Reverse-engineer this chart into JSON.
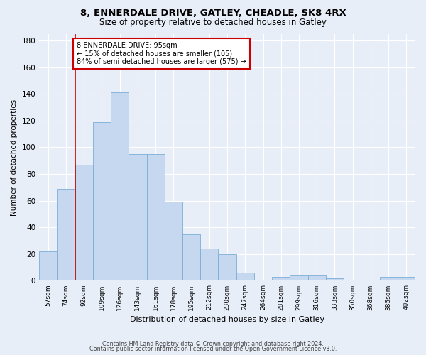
{
  "title1": "8, ENNERDALE DRIVE, GATLEY, CHEADLE, SK8 4RX",
  "title2": "Size of property relative to detached houses in Gatley",
  "xlabel": "Distribution of detached houses by size in Gatley",
  "ylabel": "Number of detached properties",
  "categories": [
    "57sqm",
    "74sqm",
    "92sqm",
    "109sqm",
    "126sqm",
    "143sqm",
    "161sqm",
    "178sqm",
    "195sqm",
    "212sqm",
    "230sqm",
    "247sqm",
    "264sqm",
    "281sqm",
    "299sqm",
    "316sqm",
    "333sqm",
    "350sqm",
    "368sqm",
    "385sqm",
    "402sqm"
  ],
  "values": [
    22,
    69,
    87,
    119,
    141,
    95,
    95,
    59,
    35,
    24,
    20,
    6,
    1,
    3,
    4,
    4,
    2,
    1,
    0,
    3,
    3
  ],
  "bar_color": "#c5d8f0",
  "bar_edge_color": "#7aaed6",
  "background_color": "#e8eef8",
  "grid_color": "#ffffff",
  "red_line_x": 1.5,
  "annotation_text": "8 ENNERDALE DRIVE: 95sqm\n← 15% of detached houses are smaller (105)\n84% of semi-detached houses are larger (575) →",
  "annotation_box_color": "#ffffff",
  "annotation_box_edge_color": "#cc0000",
  "ylim": [
    0,
    185
  ],
  "yticks": [
    0,
    20,
    40,
    60,
    80,
    100,
    120,
    140,
    160,
    180
  ],
  "footer1": "Contains HM Land Registry data © Crown copyright and database right 2024.",
  "footer2": "Contains public sector information licensed under the Open Government Licence v3.0."
}
